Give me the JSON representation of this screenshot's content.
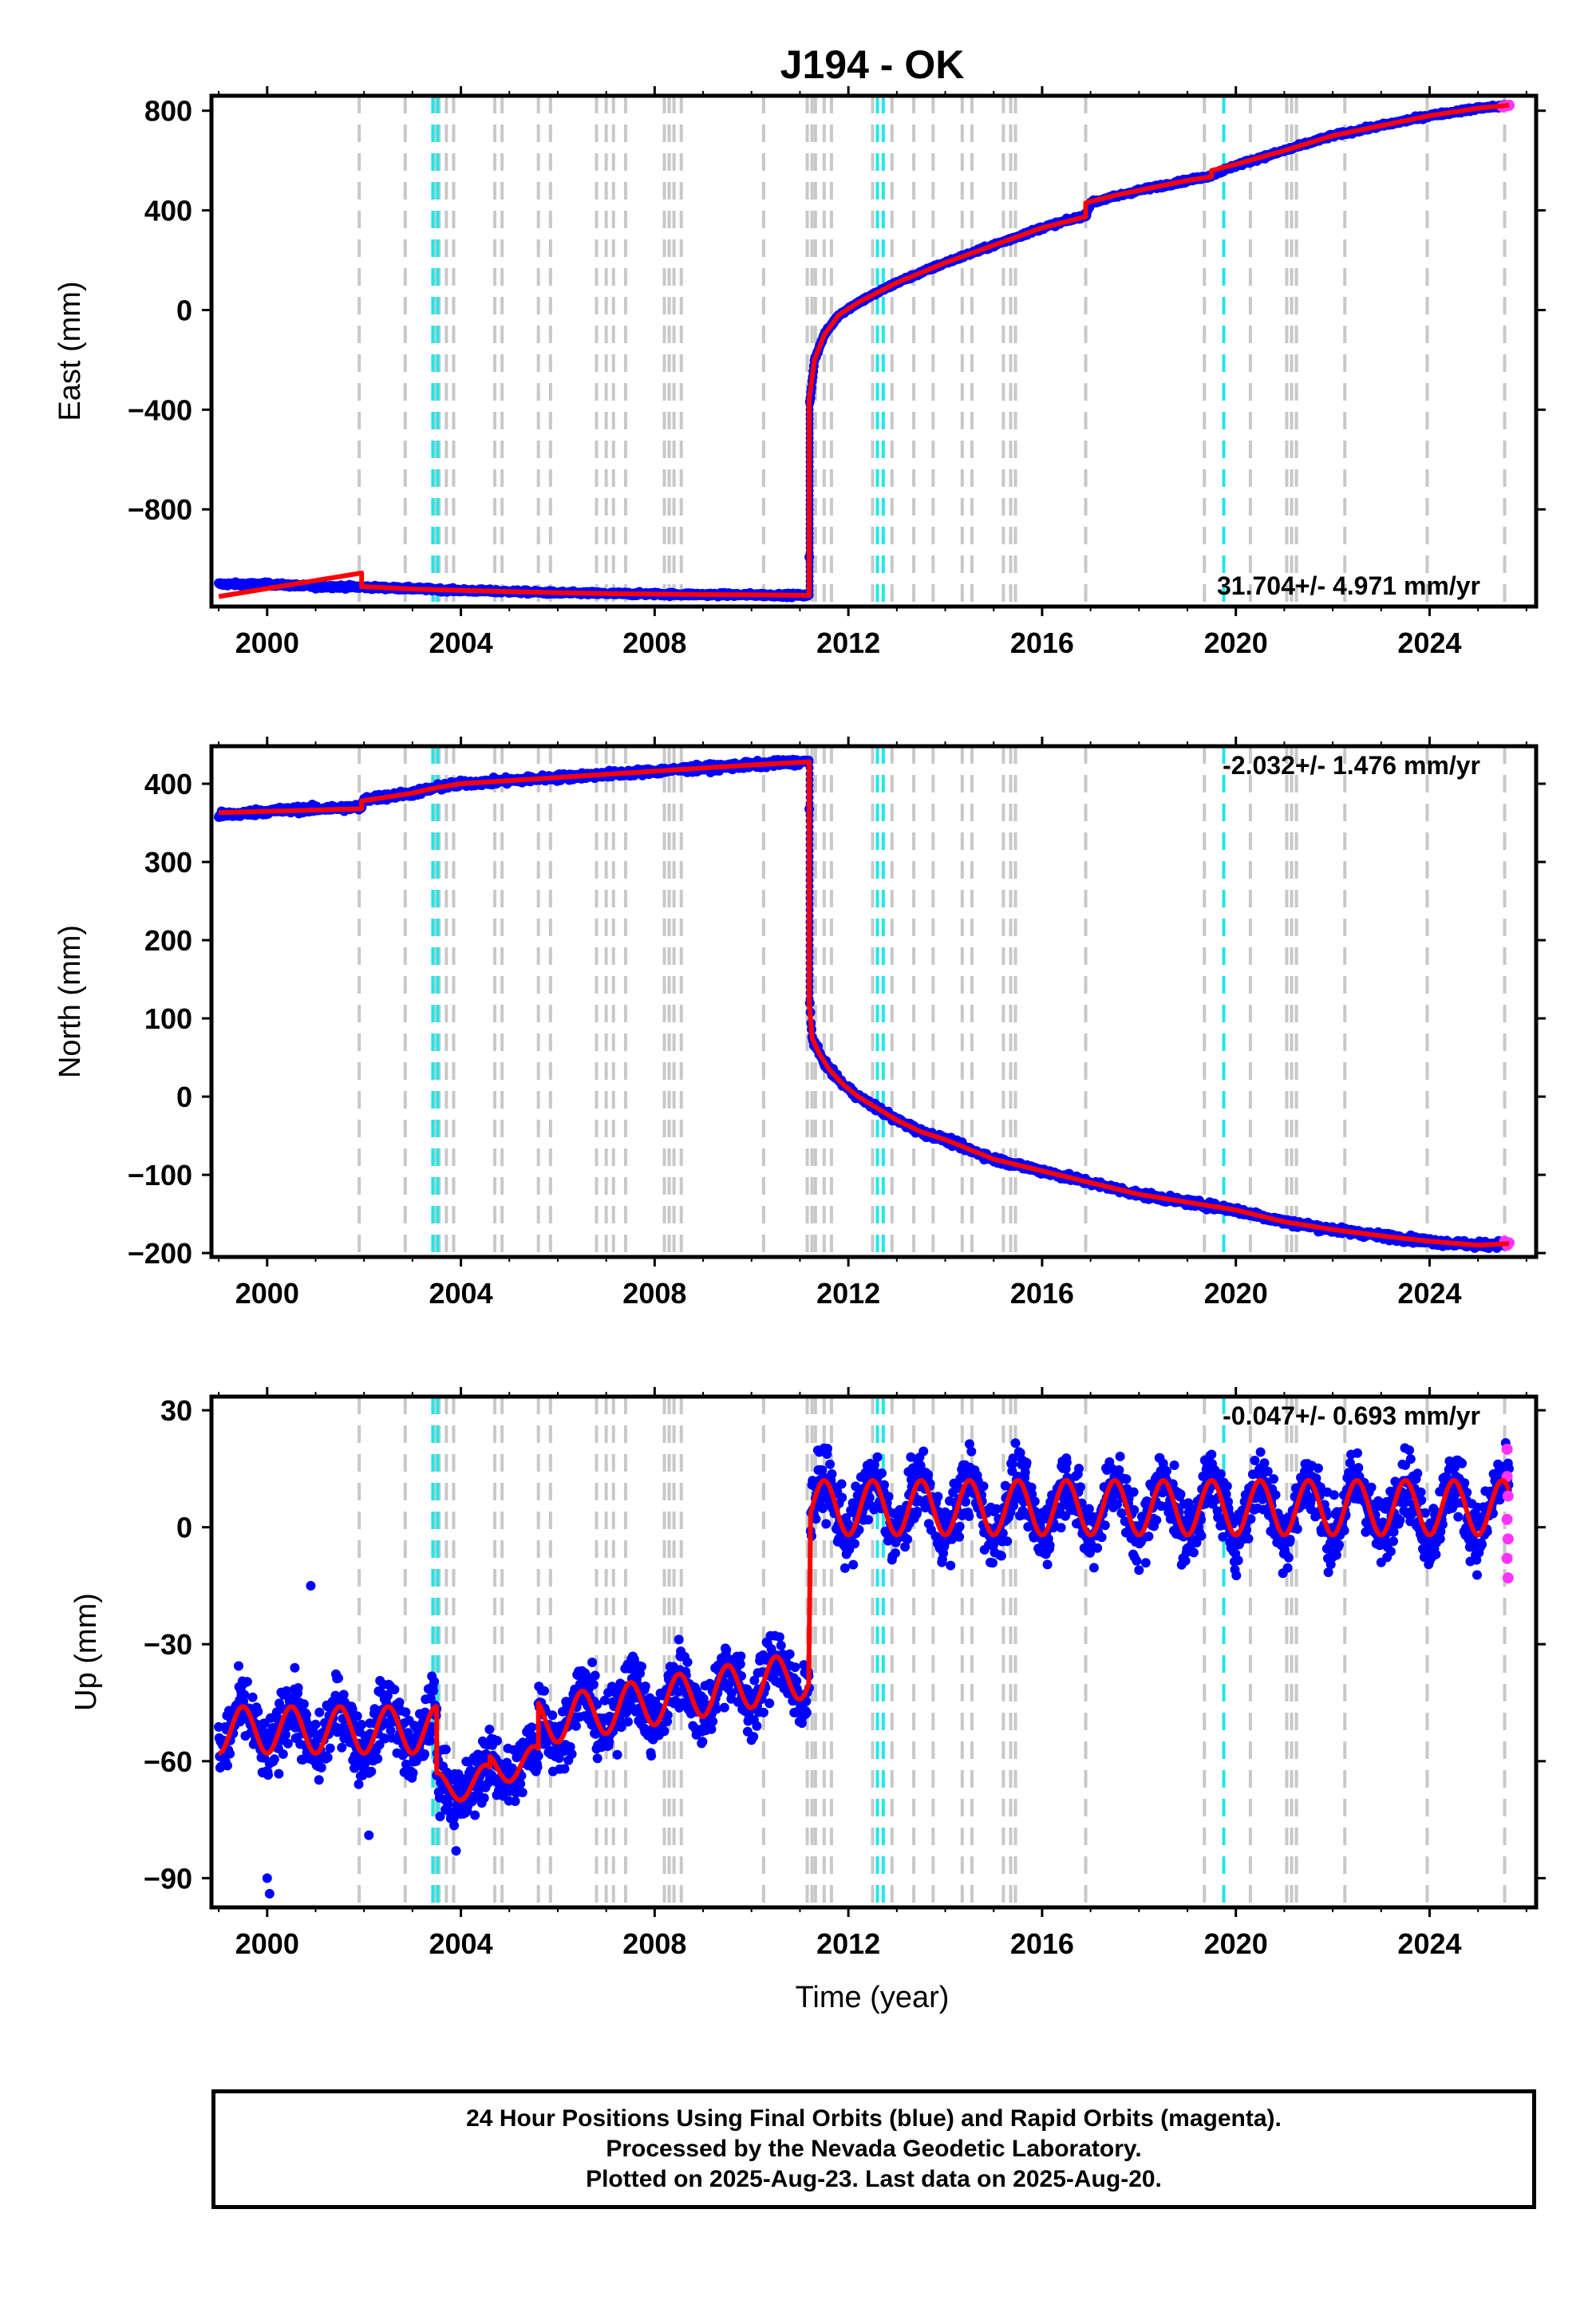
{
  "title": "J194 - OK",
  "xlabel": "Time (year)",
  "caption": {
    "line1": "24 Hour Positions Using Final Orbits (blue) and Rapid Orbits (magenta).",
    "line2": "Processed by the Nevada Geodetic Laboratory.",
    "line3": "Plotted on 2025-Aug-23. Last data on 2025-Aug-20."
  },
  "colors": {
    "final": "#0000ff",
    "rapid": "#ff33ff",
    "model": "#ff0000",
    "step_equipment": "#c8c8c8",
    "step_earthquake": "#22e6e6"
  },
  "chart_data": [
    {
      "type": "scatter",
      "id": "east",
      "ylabel": "East (mm)",
      "xlim": [
        1998.85,
        2026.2
      ],
      "ylim": [
        -1190,
        860
      ],
      "yticks": [
        -800,
        -400,
        0,
        400,
        800
      ],
      "xticks": [
        2000,
        2004,
        2008,
        2012,
        2016,
        2020,
        2024
      ],
      "rate": "31.704+/- 4.971 mm/yr",
      "rate_pos": "bottom-right",
      "series": [
        {
          "role": "final",
          "x": [
            1999.0,
            1999.5,
            2000.0,
            2000.5,
            2001.0,
            2001.5,
            2001.95,
            2002.0,
            2003.0,
            2004.0,
            2005.0,
            2006.0,
            2007.0,
            2008.0,
            2009.0,
            2010.0,
            2011.0,
            2011.19,
            2011.2,
            2011.3,
            2011.5,
            2011.8,
            2012.2,
            2012.6,
            2013.0,
            2013.5,
            2014.0,
            2015.0,
            2016.0,
            2016.9,
            2017.0,
            2018.0,
            2019.0,
            2019.5,
            2019.6,
            2020.0,
            2021.0,
            2022.0,
            2023.0,
            2024.0,
            2025.0,
            2025.6
          ],
          "y": [
            -1100,
            -1100,
            -1100,
            -1105,
            -1110,
            -1110,
            -1112,
            -1112,
            -1118,
            -1125,
            -1130,
            -1135,
            -1138,
            -1140,
            -1142,
            -1143,
            -1145,
            -1145,
            -380,
            -200,
            -100,
            -20,
            30,
            70,
            110,
            150,
            190,
            260,
            330,
            380,
            430,
            480,
            520,
            540,
            550,
            580,
            640,
            700,
            740,
            780,
            810,
            820
          ]
        },
        {
          "role": "rapid",
          "x": [
            2025.5,
            2025.55,
            2025.6,
            2025.64
          ],
          "y": [
            816,
            818,
            820,
            822
          ]
        },
        {
          "role": "model",
          "x": [
            1999.0,
            2001.95,
            2001.95,
            2002.5,
            2003.0,
            2004.0,
            2005.0,
            2006.0,
            2007.0,
            2008.0,
            2009.0,
            2010.0,
            2011.19,
            2011.19,
            2011.3,
            2011.5,
            2011.8,
            2012.2,
            2012.6,
            2013.0,
            2013.5,
            2014.0,
            2015.0,
            2016.0,
            2016.9,
            2016.9,
            2017.5,
            2018.0,
            2019.0,
            2019.5,
            2019.5,
            2020.0,
            2021.0,
            2022.0,
            2023.0,
            2024.0,
            2025.0,
            2025.64
          ],
          "y": [
            -1150,
            -1055,
            -1110,
            -1115,
            -1120,
            -1125,
            -1130,
            -1135,
            -1138,
            -1140,
            -1142,
            -1143,
            -1145,
            -360,
            -200,
            -100,
            -20,
            30,
            70,
            110,
            150,
            190,
            260,
            330,
            375,
            430,
            460,
            480,
            520,
            535,
            560,
            585,
            640,
            700,
            740,
            780,
            810,
            822
          ]
        }
      ]
    },
    {
      "type": "scatter",
      "id": "north",
      "ylabel": "North (mm)",
      "xlim": [
        1998.85,
        2026.2
      ],
      "ylim": [
        -205,
        448
      ],
      "yticks": [
        -200,
        -100,
        0,
        100,
        200,
        300,
        400
      ],
      "xticks": [
        2000,
        2004,
        2008,
        2012,
        2016,
        2020,
        2024
      ],
      "rate": "-2.032+/- 1.476 mm/yr",
      "rate_pos": "top-right",
      "series": [
        {
          "role": "final",
          "x": [
            1999.0,
            1999.5,
            2000.0,
            2001.0,
            2001.95,
            2002.0,
            2003.0,
            2003.5,
            2004.0,
            2005.0,
            2006.0,
            2007.0,
            2008.0,
            2009.0,
            2010.0,
            2011.0,
            2011.19,
            2011.2,
            2011.25,
            2011.4,
            2011.6,
            2011.9,
            2012.2,
            2012.6,
            2013.0,
            2013.5,
            2014.0,
            2015.0,
            2016.0,
            2017.0,
            2018.0,
            2019.0,
            2020.0,
            2021.0,
            2022.0,
            2023.0,
            2024.0,
            2025.0,
            2025.6
          ],
          "y": [
            360,
            362,
            365,
            368,
            370,
            380,
            388,
            395,
            400,
            404,
            408,
            412,
            416,
            420,
            424,
            428,
            428,
            125,
            75,
            55,
            35,
            15,
            0,
            -15,
            -30,
            -45,
            -55,
            -80,
            -95,
            -110,
            -125,
            -135,
            -145,
            -160,
            -170,
            -178,
            -185,
            -190,
            -188
          ]
        },
        {
          "role": "rapid",
          "x": [
            2025.55,
            2025.6,
            2025.64
          ],
          "y": [
            -185,
            -190,
            -187
          ]
        },
        {
          "role": "model",
          "x": [
            1999.0,
            2001.95,
            2001.95,
            2003.0,
            2003.5,
            2004.0,
            2005.0,
            2006.0,
            2007.0,
            2008.0,
            2009.0,
            2010.0,
            2011.19,
            2011.19,
            2011.25,
            2011.4,
            2011.6,
            2011.9,
            2012.2,
            2012.6,
            2013.0,
            2013.5,
            2014.0,
            2015.0,
            2016.0,
            2017.0,
            2018.0,
            2019.0,
            2020.0,
            2021.0,
            2022.0,
            2023.0,
            2024.0,
            2025.0,
            2025.64
          ],
          "y": [
            363,
            368,
            378,
            388,
            395,
            400,
            404,
            408,
            412,
            416,
            420,
            424,
            428,
            120,
            75,
            55,
            35,
            15,
            0,
            -15,
            -30,
            -45,
            -55,
            -80,
            -95,
            -110,
            -125,
            -135,
            -145,
            -160,
            -170,
            -178,
            -185,
            -190,
            -188
          ]
        }
      ]
    },
    {
      "type": "scatter",
      "id": "up",
      "ylabel": "Up (mm)",
      "xlim": [
        1998.85,
        2026.2
      ],
      "ylim": [
        -97.5,
        33.5
      ],
      "yticks": [
        -90,
        -60,
        -30,
        0,
        30
      ],
      "xticks": [
        2000,
        2004,
        2008,
        2012,
        2016,
        2020,
        2024
      ],
      "rate": "-0.047+/- 0.693 mm/yr",
      "rate_pos": "top-right",
      "segments": [
        {
          "start": 1999.0,
          "end": 2003.5,
          "base0": -52,
          "slope": 0.0,
          "amp": 6
        },
        {
          "start": 2003.5,
          "end": 2004.6,
          "base0": -67,
          "slope": 2.0,
          "amp": 4
        },
        {
          "start": 2004.6,
          "end": 2005.6,
          "base0": -62,
          "slope": 2.0,
          "amp": 4
        },
        {
          "start": 2005.6,
          "end": 2011.19,
          "base0": -50,
          "slope": 2.2,
          "amp": 6
        },
        {
          "start": 2011.22,
          "end": 2025.64,
          "base0": 5,
          "slope": 0.0,
          "amp": 7
        }
      ],
      "outliers": [
        {
          "x": 2000.0,
          "y": -90
        },
        {
          "x": 2000.05,
          "y": -94
        },
        {
          "x": 2000.9,
          "y": -15
        },
        {
          "x": 2002.1,
          "y": -79
        },
        {
          "x": 2003.9,
          "y": -83
        }
      ],
      "rapid_points": [
        {
          "x": 2025.6,
          "y": 20
        },
        {
          "x": 2025.6,
          "y": 13
        },
        {
          "x": 2025.62,
          "y": 8
        },
        {
          "x": 2025.6,
          "y": 2
        },
        {
          "x": 2025.62,
          "y": -3
        },
        {
          "x": 2025.6,
          "y": -8
        },
        {
          "x": 2025.62,
          "y": -13
        }
      ]
    }
  ],
  "steps": {
    "equipment": [
      2001.9,
      2002.85,
      2003.45,
      2003.55,
      2003.7,
      2003.85,
      2004.7,
      2004.85,
      2005.6,
      2005.85,
      2006.8,
      2007.0,
      2007.15,
      2007.4,
      2008.2,
      2008.3,
      2008.4,
      2008.55,
      2010.25,
      2011.15,
      2011.25,
      2011.32,
      2011.5,
      2011.65,
      2012.5,
      2012.9,
      2013.35,
      2013.75,
      2014.35,
      2014.55,
      2015.2,
      2015.35,
      2015.45,
      2016.9,
      2019.35,
      2020.3,
      2021.05,
      2021.15,
      2021.25,
      2022.25,
      2023.95,
      2025.55
    ],
    "earthquake": [
      2003.42,
      2003.52,
      2012.6,
      2012.72,
      2019.75
    ]
  }
}
